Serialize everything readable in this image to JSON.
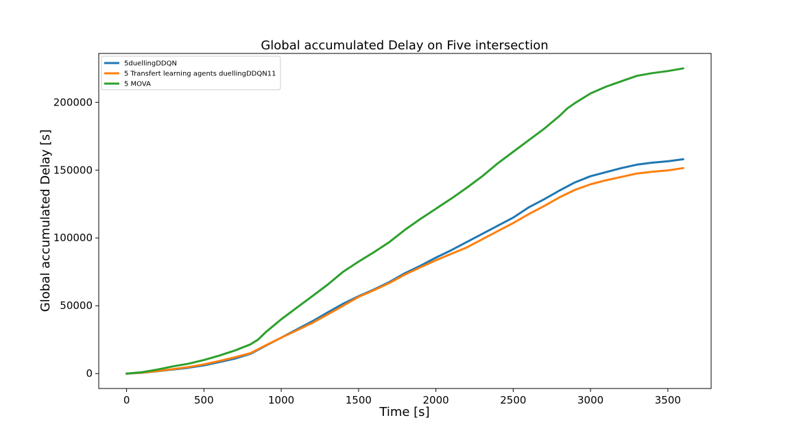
{
  "chart_data": {
    "type": "line",
    "title": "Global accumulated Delay on Five intersection",
    "xlabel": "Time [s]",
    "ylabel": "Global accumulated Delay [s]",
    "xlim": [
      -180,
      3780
    ],
    "ylim": [
      -11000,
      236000
    ],
    "xticks": [
      0,
      500,
      1000,
      1500,
      2000,
      2500,
      3000,
      3500
    ],
    "yticks": [
      0,
      50000,
      100000,
      150000,
      200000
    ],
    "grid": false,
    "legend_position": "top-left",
    "series": [
      {
        "name": "5duellingDDQN",
        "color": "#1f77b4",
        "x": [
          0,
          100,
          200,
          300,
          400,
          500,
          600,
          700,
          800,
          900,
          1000,
          1100,
          1200,
          1300,
          1400,
          1500,
          1600,
          1700,
          1800,
          1900,
          2000,
          2100,
          2200,
          2300,
          2400,
          2500,
          2600,
          2700,
          2800,
          2900,
          3000,
          3100,
          3200,
          3300,
          3400,
          3500,
          3600
        ],
        "y": [
          0,
          600,
          1800,
          3000,
          4300,
          6000,
          8500,
          11000,
          14500,
          20500,
          26500,
          32500,
          38500,
          45000,
          51500,
          57000,
          62000,
          67500,
          74000,
          79500,
          85500,
          91000,
          97000,
          103000,
          109000,
          115000,
          122500,
          128500,
          135000,
          141000,
          145500,
          148500,
          151500,
          154000,
          155500,
          156500,
          158000
        ]
      },
      {
        "name": "5 Transfert learning agents duellingDDQN11",
        "color": "#ff7f0e",
        "x": [
          0,
          100,
          200,
          300,
          400,
          500,
          600,
          700,
          800,
          900,
          1000,
          1100,
          1200,
          1300,
          1400,
          1500,
          1600,
          1700,
          1800,
          1900,
          2000,
          2100,
          2200,
          2300,
          2400,
          2500,
          2600,
          2700,
          2800,
          2900,
          3000,
          3100,
          3200,
          3300,
          3400,
          3500,
          3600
        ],
        "y": [
          0,
          700,
          1900,
          3300,
          4800,
          6800,
          9300,
          12000,
          15000,
          20800,
          26500,
          31800,
          37300,
          43500,
          50000,
          56500,
          61500,
          66800,
          73000,
          78300,
          83500,
          88300,
          93000,
          99000,
          105000,
          111000,
          117500,
          123500,
          130000,
          135500,
          139500,
          142500,
          145000,
          147500,
          148800,
          149800,
          151500
        ]
      },
      {
        "name": "5 MOVA",
        "color": "#2ca02c",
        "x": [
          0,
          100,
          200,
          300,
          400,
          500,
          600,
          700,
          800,
          850,
          900,
          1000,
          1100,
          1200,
          1300,
          1400,
          1500,
          1600,
          1700,
          1800,
          1900,
          2000,
          2100,
          2200,
          2300,
          2400,
          2500,
          2600,
          2700,
          2800,
          2850,
          2900,
          3000,
          3100,
          3200,
          3300,
          3400,
          3500,
          3600
        ],
        "y": [
          0,
          1000,
          3000,
          5300,
          7300,
          10000,
          13300,
          17000,
          21500,
          25000,
          30500,
          40000,
          48500,
          57000,
          65500,
          75000,
          82500,
          89500,
          97000,
          106000,
          114000,
          121500,
          129000,
          137000,
          145500,
          155000,
          163500,
          172000,
          180500,
          190000,
          195500,
          199500,
          206500,
          211500,
          215500,
          219500,
          221500,
          223000,
          225000
        ]
      }
    ]
  }
}
